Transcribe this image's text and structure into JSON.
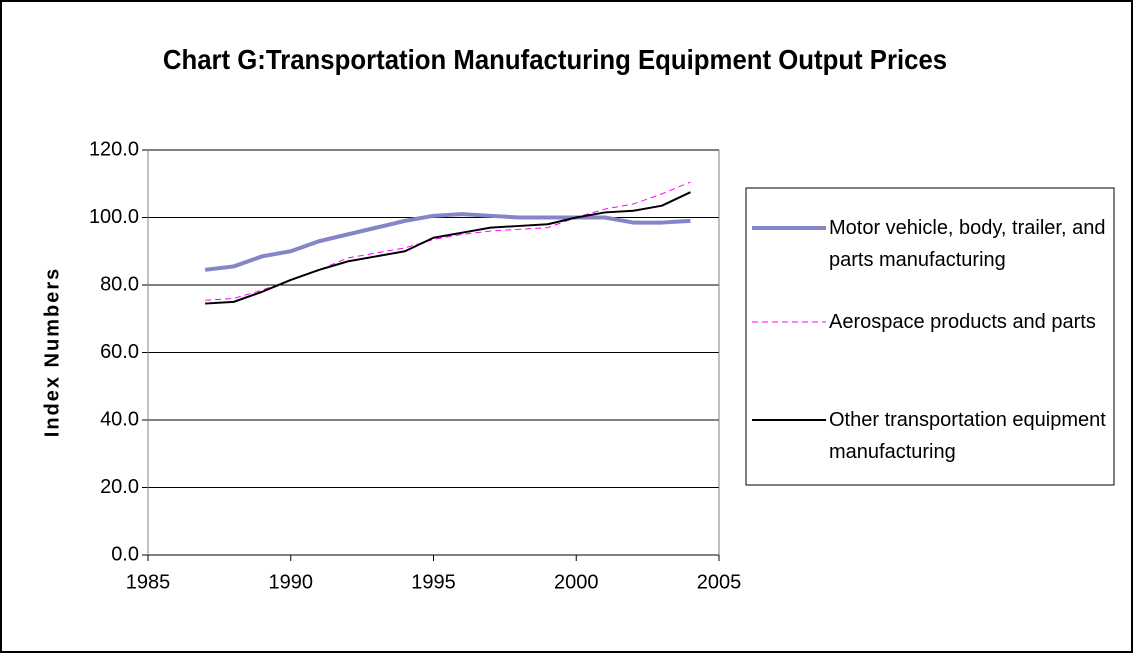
{
  "chart_data": {
    "type": "line",
    "title": "Chart G:Transportation Manufacturing Equipment Output Prices",
    "y_label": "Index Numbers",
    "x": [
      1987,
      1988,
      1989,
      1990,
      1991,
      1992,
      1993,
      1994,
      1995,
      1996,
      1997,
      1998,
      1999,
      2000,
      2001,
      2002,
      2003,
      2004
    ],
    "series": [
      {
        "name": "Motor vehicle, body, trailer, and parts manufacturing",
        "color": "#8585c8",
        "width": 4,
        "line_style": "solid",
        "values": [
          84.5,
          85.5,
          88.5,
          90,
          93,
          95,
          97,
          99,
          100.5,
          101,
          100.5,
          100,
          100,
          100,
          100,
          98.5,
          98.5,
          99
        ]
      },
      {
        "name": "Aerospace products and parts",
        "color": "#ff00ff",
        "width": 1,
        "line_style": "dashed",
        "values": [
          75.5,
          76,
          78.5,
          81.5,
          84.5,
          88,
          89.5,
          91,
          93.5,
          95,
          96,
          96.5,
          97,
          100,
          102.5,
          104,
          107,
          110.5
        ]
      },
      {
        "name": "Other transportation equipment manufacturing",
        "color": "#000000",
        "width": 2,
        "line_style": "solid",
        "values": [
          74.5,
          75,
          78,
          81.5,
          84.5,
          87,
          88.5,
          90,
          94,
          95.5,
          97,
          97.5,
          98,
          100,
          101.5,
          102,
          103.5,
          107.5
        ]
      }
    ],
    "xlim": [
      1985,
      2005
    ],
    "xticks": [
      1985,
      1990,
      1995,
      2000,
      2005
    ],
    "ylim": [
      0,
      120
    ],
    "yticks": [
      {
        "value": 0,
        "label": "0.0"
      },
      {
        "value": 20,
        "label": "20.0"
      },
      {
        "value": 40,
        "label": "40.0"
      },
      {
        "value": 60,
        "label": "60.0"
      },
      {
        "value": 80,
        "label": "80.0"
      },
      {
        "value": 100,
        "label": "100.0"
      },
      {
        "value": 120,
        "label": "120.0"
      }
    ],
    "grid": true,
    "legend": "right"
  }
}
